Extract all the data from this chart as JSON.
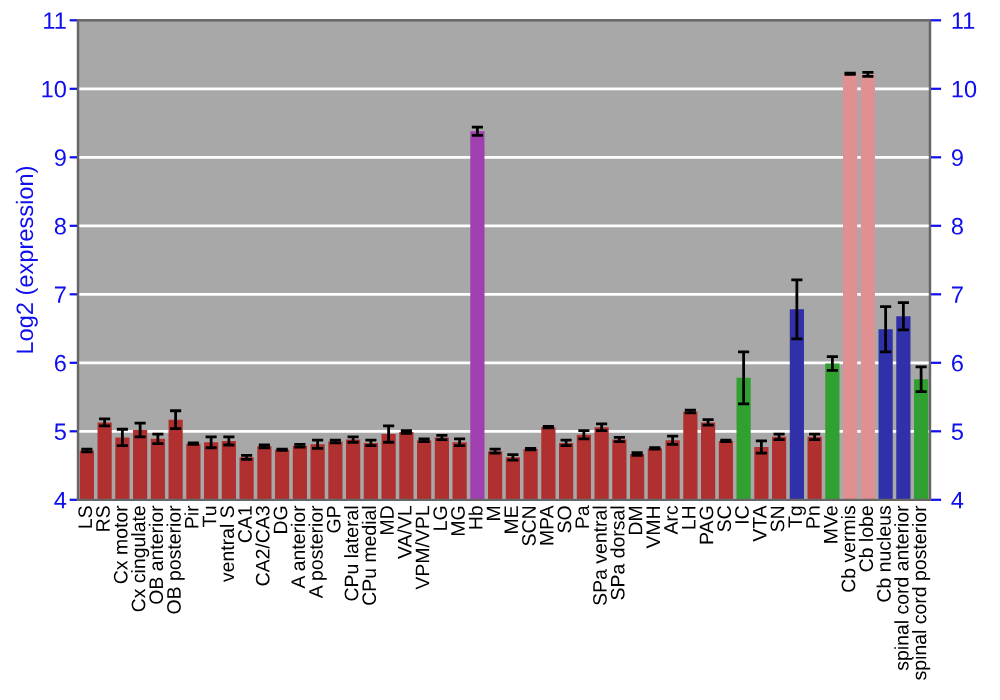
{
  "chart_data": {
    "type": "bar",
    "ylabel": "Log2 (expression)",
    "categories": [
      "LS",
      "RS",
      "Cx motor",
      "Cx cingulate",
      "OB anterior",
      "OB posterior",
      "Pir",
      "Tu",
      "ventral S",
      "CA1",
      "CA2/CA3",
      "DG",
      "A anterior",
      "A posterior",
      "GP",
      "CPu lateral",
      "CPu medial",
      "MD",
      "VA/VL",
      "VPM/VPL",
      "LG",
      "MG",
      "Hb",
      "M",
      "ME",
      "SCN",
      "MPA",
      "SO",
      "Pa",
      "SPa ventral",
      "SPa dorsal",
      "DM",
      "VMH",
      "Arc",
      "LH",
      "PAG",
      "SC",
      "IC",
      "VTA",
      "SN",
      "Tg",
      "Pn",
      "MVe",
      "Cb vermis",
      "Cb lobe",
      "Cb nucleus",
      "spinal cord anterior",
      "spinal cord posterior"
    ],
    "values": [
      4.72,
      5.13,
      4.91,
      5.02,
      4.89,
      5.17,
      4.82,
      4.84,
      4.86,
      4.62,
      4.78,
      4.73,
      4.79,
      4.81,
      4.85,
      4.88,
      4.83,
      4.96,
      4.99,
      4.87,
      4.91,
      4.84,
      9.38,
      4.71,
      4.62,
      4.74,
      5.06,
      4.83,
      4.95,
      5.06,
      4.88,
      4.67,
      4.75,
      4.87,
      5.29,
      5.13,
      4.86,
      5.78,
      4.77,
      4.92,
      6.78,
      4.92,
      5.99,
      10.22,
      10.21,
      6.49,
      6.68,
      5.76
    ],
    "errors": [
      0.02,
      0.05,
      0.12,
      0.1,
      0.07,
      0.13,
      0.01,
      0.08,
      0.06,
      0.03,
      0.02,
      0.01,
      0.02,
      0.06,
      0.02,
      0.04,
      0.04,
      0.12,
      0.02,
      0.02,
      0.03,
      0.05,
      0.06,
      0.03,
      0.04,
      0.01,
      0.01,
      0.04,
      0.06,
      0.05,
      0.03,
      0.02,
      0.01,
      0.06,
      0.02,
      0.04,
      0.01,
      0.38,
      0.09,
      0.04,
      0.43,
      0.04,
      0.1,
      0.01,
      0.03,
      0.33,
      0.2,
      0.18
    ],
    "colors": [
      "#b03030",
      "#b03030",
      "#b03030",
      "#b03030",
      "#b03030",
      "#b03030",
      "#b03030",
      "#b03030",
      "#b03030",
      "#b03030",
      "#b03030",
      "#b03030",
      "#b03030",
      "#b03030",
      "#b03030",
      "#b03030",
      "#b03030",
      "#b03030",
      "#b03030",
      "#b03030",
      "#b03030",
      "#b03030",
      "#a040b0",
      "#b03030",
      "#b03030",
      "#b03030",
      "#b03030",
      "#b03030",
      "#b03030",
      "#b03030",
      "#b03030",
      "#b03030",
      "#b03030",
      "#b03030",
      "#b03030",
      "#b03030",
      "#b03030",
      "#30a030",
      "#b03030",
      "#b03030",
      "#3030a8",
      "#b03030",
      "#30a030",
      "#e09090",
      "#e09090",
      "#3030a8",
      "#3030a8",
      "#30a030"
    ],
    "ylim": [
      4,
      11
    ],
    "yticks": [
      4,
      5,
      6,
      7,
      8,
      9,
      10,
      11
    ],
    "y2lim": [
      4,
      11
    ],
    "y2ticks": [
      4,
      5,
      6,
      7,
      8,
      9,
      10,
      11
    ],
    "grid": "y"
  }
}
